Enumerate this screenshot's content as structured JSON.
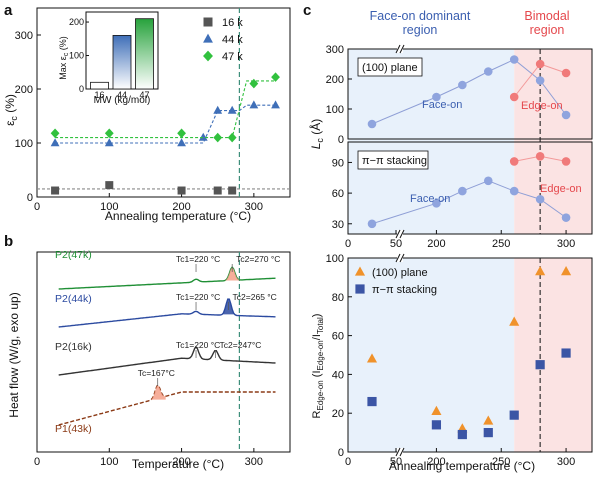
{
  "colors": {
    "gray": "#555555",
    "blue": "#3f6fb8",
    "green": "#2fb34a",
    "bar_green": "#27a23c",
    "diamond_green": "#31c13e",
    "orange": "#f0922b",
    "navy": "#3b55a5",
    "dash_teal": "#3e8f7b",
    "face_text": "#3b5fb0",
    "edge_text": "#e5484d",
    "face_bg": "#e8f1fb",
    "edge_bg": "#fbe3e3",
    "curve_green": "#1f8f35",
    "curve_blue": "#2b4aa0",
    "curve_black": "#333333",
    "curve_brown": "#8b3a16",
    "peak_fill": "#f5a088"
  },
  "panels": {
    "a": "a",
    "b": "b",
    "c": "c"
  },
  "chart_data": [
    {
      "id": "a",
      "type": "scatter",
      "xlabel": "Annealing temperature (°C)",
      "ylabel": "εc (%)",
      "xlim": [
        0,
        350
      ],
      "ylim": [
        0,
        350
      ],
      "xticks": [
        "0",
        "100",
        "200",
        "300"
      ],
      "yticks": [
        "0",
        "100",
        "200",
        "300"
      ],
      "vline": 280,
      "series": [
        {
          "name": "16 k",
          "marker": "square",
          "x": [
            25,
            100,
            200,
            250,
            270
          ],
          "y": [
            12,
            22,
            12,
            12,
            12
          ],
          "step": [
            [
              0,
              15
            ],
            [
              350,
              15
            ]
          ]
        },
        {
          "name": "44 k",
          "marker": "triangle",
          "x": [
            25,
            100,
            200,
            230,
            250,
            270,
            300,
            330
          ],
          "y": [
            100,
            100,
            100,
            110,
            160,
            160,
            170,
            170
          ],
          "step": [
            [
              25,
              100
            ],
            [
              230,
              100
            ],
            [
              250,
              160
            ],
            [
              280,
              160
            ],
            [
              290,
              170
            ],
            [
              330,
              170
            ]
          ]
        },
        {
          "name": "47 k",
          "marker": "diamond",
          "x": [
            25,
            100,
            200,
            250,
            270,
            300,
            330
          ],
          "y": [
            118,
            118,
            118,
            110,
            110,
            210,
            222
          ],
          "step": [
            [
              25,
              110
            ],
            [
              270,
              110
            ],
            [
              290,
              215
            ],
            [
              330,
              215
            ]
          ]
        }
      ],
      "inset": {
        "type": "bar",
        "categories": [
          "16",
          "44",
          "47"
        ],
        "values": [
          20,
          160,
          210
        ],
        "xlabel": "MW (kg/mol)",
        "ylabel": "Max εc (%)",
        "ylim": [
          0,
          230
        ],
        "yticks": [
          "0",
          "100",
          "200"
        ]
      }
    },
    {
      "id": "b",
      "type": "line",
      "xlabel": "Temperature (°C)",
      "ylabel": "Heat flow (W/g, exo up)",
      "xlim": [
        0,
        350
      ],
      "xticks": [
        "0",
        "100",
        "200",
        "300"
      ],
      "vline": 280,
      "series": [
        {
          "name": "P2(47k)",
          "offset": 3.2,
          "peaks": [
            {
              "t": 220,
              "h": 0.05
            },
            {
              "t": 270,
              "h": 0.22
            }
          ],
          "labels": [
            "Tc1=220 °C",
            "Tc2=270 °C"
          ]
        },
        {
          "name": "P2(44k)",
          "offset": 2.1,
          "peaks": [
            {
              "t": 220,
              "h": 0.05
            },
            {
              "t": 265,
              "h": 0.28
            }
          ],
          "labels": [
            "Tc1=220 °C",
            "Tc2=265 °C"
          ]
        },
        {
          "name": "P2(16k)",
          "offset": 1.0,
          "peaks": [
            {
              "t": 220,
              "h": 0.2
            },
            {
              "t": 247,
              "h": 0.16
            }
          ],
          "labels": [
            "Tc1=220 °C",
            "Tc2=247°C"
          ]
        },
        {
          "name": "P1(43k)",
          "offset": 0.0,
          "peaks": [
            {
              "t": 167,
              "h": 0.22
            }
          ],
          "labels": [
            "Tc=167°C"
          ]
        }
      ]
    },
    {
      "id": "c-top",
      "type": "line",
      "ylabel": "Lc (Å)",
      "xlim": [
        0,
        320
      ],
      "xticks": [
        "0",
        "50",
        "200",
        "250",
        "300"
      ],
      "vline": 280,
      "regions": {
        "face_on_title": [
          "Face-on dominant",
          "region"
        ],
        "bimodal_title": [
          "Bimodal",
          "region"
        ],
        "boundary": 260
      },
      "subplots": [
        {
          "label": "(100) plane",
          "ylim": [
            0,
            300
          ],
          "yticks": [
            "0",
            "100",
            "200",
            "300"
          ],
          "face_on": {
            "name": "Face-on",
            "x": [
              25,
              200,
              220,
              240,
              260,
              280,
              300
            ],
            "y": [
              50,
              140,
              180,
              225,
              265,
              195,
              80
            ]
          },
          "edge_on": {
            "name": "Edge-on",
            "x": [
              260,
              280,
              300
            ],
            "y": [
              140,
              250,
              220
            ]
          }
        },
        {
          "label": "π−π stacking",
          "ylim": [
            20,
            110
          ],
          "yticks": [
            "30",
            "60",
            "90"
          ],
          "face_on": {
            "name": "Face-on",
            "x": [
              25,
              200,
              220,
              240,
              260,
              280,
              300
            ],
            "y": [
              30,
              50,
              62,
              72,
              62,
              54,
              36
            ]
          },
          "edge_on": {
            "name": "Edge-on",
            "x": [
              260,
              280,
              300
            ],
            "y": [
              91,
              96,
              91
            ]
          }
        }
      ]
    },
    {
      "id": "c-bottom",
      "type": "scatter",
      "xlabel": "Annealing temperature (°C)",
      "ylabel_main": "R",
      "ylabel_sub": "Edge-on",
      "ylabel_paren_sub1": "Edge-on",
      "ylabel_paren_sub2": "Total",
      "xlim": [
        0,
        320
      ],
      "ylim": [
        0,
        100
      ],
      "xticks": [
        "0",
        "50",
        "200",
        "250",
        "300"
      ],
      "yticks": [
        "0",
        "20",
        "40",
        "60",
        "80",
        "100"
      ],
      "vline": 280,
      "series": [
        {
          "name": "(100) plane",
          "marker": "triangle",
          "x": [
            25,
            200,
            220,
            240,
            260,
            280,
            300
          ],
          "y": [
            48,
            21,
            12,
            16,
            67,
            93,
            93
          ]
        },
        {
          "name": "π−π stacking",
          "marker": "square",
          "x": [
            25,
            200,
            220,
            240,
            260,
            280,
            300
          ],
          "y": [
            26,
            14,
            9,
            10,
            19,
            45,
            51
          ]
        }
      ]
    }
  ]
}
